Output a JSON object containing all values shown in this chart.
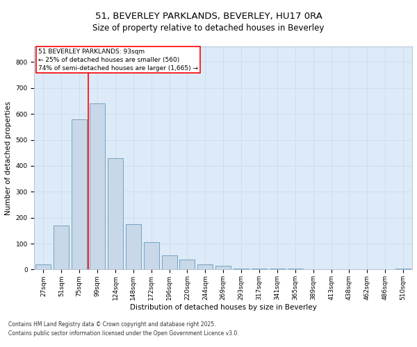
{
  "title1": "51, BEVERLEY PARKLANDS, BEVERLEY, HU17 0RA",
  "title2": "Size of property relative to detached houses in Beverley",
  "xlabel": "Distribution of detached houses by size in Beverley",
  "ylabel": "Number of detached properties",
  "categories": [
    "27sqm",
    "51sqm",
    "75sqm",
    "99sqm",
    "124sqm",
    "148sqm",
    "172sqm",
    "196sqm",
    "220sqm",
    "244sqm",
    "269sqm",
    "293sqm",
    "317sqm",
    "341sqm",
    "365sqm",
    "389sqm",
    "413sqm",
    "438sqm",
    "462sqm",
    "486sqm",
    "510sqm"
  ],
  "values": [
    20,
    170,
    580,
    640,
    430,
    175,
    105,
    55,
    40,
    20,
    15,
    5,
    5,
    5,
    3,
    2,
    0,
    0,
    0,
    0,
    3
  ],
  "bar_color": "#c8d8e8",
  "bar_edge_color": "#6699bb",
  "grid_color": "#ccddee",
  "background_color": "#ddeaf7",
  "vline_x": 2.5,
  "vline_color": "red",
  "annotation_box_text": "51 BEVERLEY PARKLANDS: 93sqm\n← 25% of detached houses are smaller (560)\n74% of semi-detached houses are larger (1,665) →",
  "ylim": [
    0,
    860
  ],
  "yticks": [
    0,
    100,
    200,
    300,
    400,
    500,
    600,
    700,
    800
  ],
  "footnote1": "Contains HM Land Registry data © Crown copyright and database right 2025.",
  "footnote2": "Contains public sector information licensed under the Open Government Licence v3.0.",
  "title_fontsize": 9.5,
  "subtitle_fontsize": 8.5,
  "tick_fontsize": 6.5,
  "ylabel_fontsize": 7.5,
  "xlabel_fontsize": 7.5,
  "annotation_fontsize": 6.5,
  "footnote_fontsize": 5.5
}
